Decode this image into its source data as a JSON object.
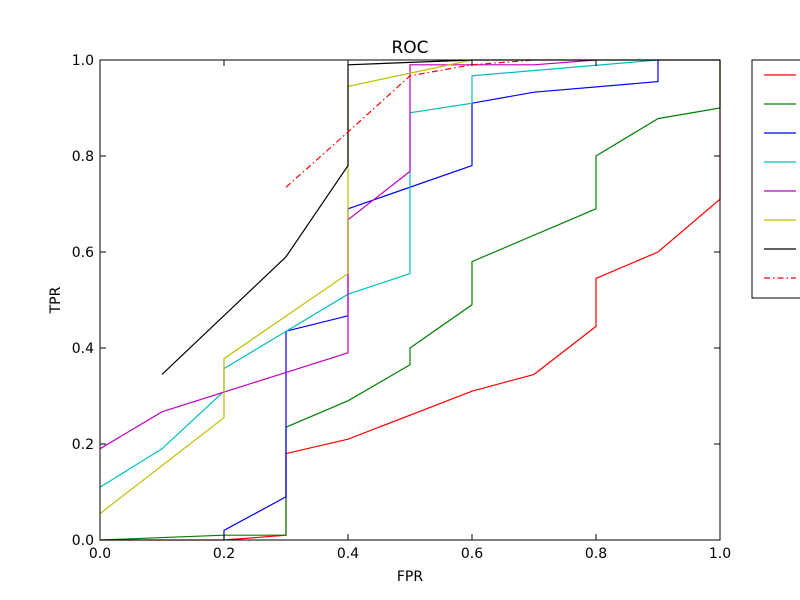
{
  "chart_data": {
    "type": "line",
    "title": "ROC",
    "xlabel": "FPR",
    "ylabel": "TPR",
    "xlim": [
      0.0,
      1.0
    ],
    "ylim": [
      0.0,
      1.0
    ],
    "xticks": [
      "0.0",
      "0.2",
      "0.4",
      "0.6",
      "0.8",
      "1.0"
    ],
    "yticks": [
      "0.0",
      "0.2",
      "0.4",
      "0.6",
      "0.8",
      "1.0"
    ],
    "grid": false,
    "legend_position": "outside-right",
    "series": [
      {
        "color": "#ff0000",
        "style": "solid",
        "x": [
          0.0,
          0.2,
          0.3,
          0.3,
          0.4,
          0.6,
          0.7,
          0.8,
          0.8,
          0.9,
          1.0,
          1.0
        ],
        "y": [
          0.0,
          0.0,
          0.01,
          0.18,
          0.21,
          0.31,
          0.345,
          0.445,
          0.545,
          0.6,
          0.71,
          1.0
        ]
      },
      {
        "color": "#008000",
        "style": "solid",
        "x": [
          0.0,
          0.2,
          0.3,
          0.3,
          0.4,
          0.5,
          0.5,
          0.6,
          0.6,
          0.8,
          0.8,
          0.9,
          1.0,
          1.0
        ],
        "y": [
          0.0,
          0.01,
          0.01,
          0.235,
          0.29,
          0.365,
          0.4,
          0.49,
          0.58,
          0.69,
          0.8,
          0.878,
          0.9,
          1.0
        ]
      },
      {
        "color": "#0000ff",
        "style": "solid",
        "x": [
          0.2,
          0.2,
          0.3,
          0.3,
          0.4,
          0.4,
          0.6,
          0.6,
          0.7,
          0.9,
          0.9
        ],
        "y": [
          0.0,
          0.02,
          0.09,
          0.435,
          0.467,
          0.69,
          0.78,
          0.91,
          0.933,
          0.955,
          1.0
        ]
      },
      {
        "color": "#00bfbf",
        "style": "solid",
        "x": [
          0.0,
          0.1,
          0.2,
          0.2,
          0.4,
          0.5,
          0.5,
          0.6,
          0.6,
          0.9
        ],
        "y": [
          0.11,
          0.19,
          0.31,
          0.357,
          0.512,
          0.555,
          0.89,
          0.91,
          0.967,
          1.0
        ]
      },
      {
        "color": "#bf00bf",
        "style": "solid",
        "x": [
          0.0,
          0.1,
          0.4,
          0.4,
          0.5,
          0.5,
          0.6,
          0.7,
          0.8
        ],
        "y": [
          0.19,
          0.267,
          0.39,
          0.667,
          0.768,
          0.99,
          0.99,
          0.99,
          1.0
        ]
      },
      {
        "color": "#bfbf00",
        "style": "solid",
        "x": [
          0.0,
          0.2,
          0.2,
          0.4,
          0.4,
          0.6
        ],
        "y": [
          0.055,
          0.255,
          0.378,
          0.555,
          0.945,
          1.0
        ]
      },
      {
        "color": "#000000",
        "style": "solid",
        "x": [
          0.1,
          0.3,
          0.4,
          0.4,
          0.6,
          1.0
        ],
        "y": [
          0.345,
          0.59,
          0.78,
          0.99,
          1.0,
          1.0
        ]
      },
      {
        "color": "#ff0000",
        "style": "dashdot",
        "x": [
          0.3,
          0.4,
          0.5,
          0.6,
          0.7
        ],
        "y": [
          0.735,
          0.85,
          0.967,
          0.99,
          1.0
        ]
      }
    ]
  }
}
